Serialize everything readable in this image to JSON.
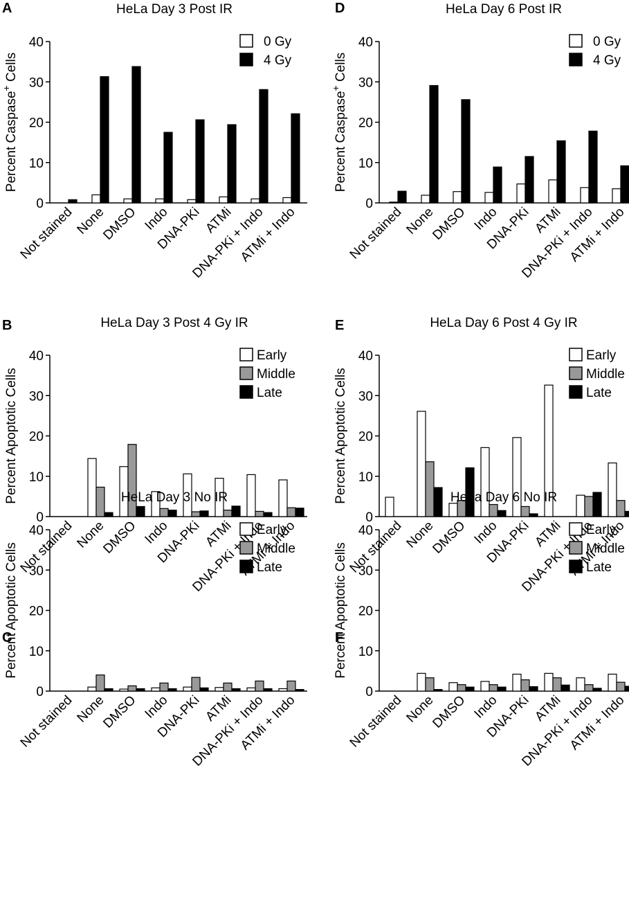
{
  "colors": {
    "white_bar": "#ffffff",
    "gray_bar": "#999999",
    "black_bar": "#000000",
    "stroke": "#000000"
  },
  "chart_data": [
    {
      "panel": "A",
      "type": "bar",
      "title": "HeLa Day 3 Post IR",
      "ylabel": "Percent Caspase+ Cells",
      "ylabel_main": "Percent Caspase",
      "ylabel_sup": "+",
      "ylabel_tail": " Cells",
      "ylim": [
        0,
        40
      ],
      "yticks": [
        "0",
        "10",
        "20",
        "30",
        "40"
      ],
      "categories": [
        "Not stained",
        "None",
        "DMSO",
        "Indo",
        "DNA-PKi",
        "ATMi",
        "DNA-PKi + Indo",
        "ATMi + Indo"
      ],
      "legend": "top-right",
      "series": [
        {
          "name": "0 Gy",
          "fill": "white",
          "values": [
            0,
            2.0,
            1.0,
            1.0,
            0.8,
            1.5,
            1.0,
            1.3
          ]
        },
        {
          "name": "4 Gy",
          "fill": "black",
          "values": [
            0.8,
            31.3,
            33.8,
            17.5,
            20.6,
            19.4,
            28.1,
            22.1
          ]
        }
      ]
    },
    {
      "panel": "D",
      "type": "bar",
      "title": "HeLa Day 6 Post IR",
      "ylabel": "Percent Caspase+ Cells",
      "ylabel_main": "Percent Caspase",
      "ylabel_sup": "+",
      "ylabel_tail": " Cells",
      "ylim": [
        0,
        40
      ],
      "yticks": [
        "0",
        "10",
        "20",
        "30",
        "40"
      ],
      "categories": [
        "Not stained",
        "None",
        "DMSO",
        "Indo",
        "DNA-PKi",
        "ATMi",
        "DNA-PKi + Indo",
        "ATMi + Indo"
      ],
      "legend": "top-right",
      "series": [
        {
          "name": "0 Gy",
          "fill": "white",
          "values": [
            0.2,
            1.9,
            2.8,
            2.6,
            4.7,
            5.7,
            3.8,
            3.5
          ]
        },
        {
          "name": "4 Gy",
          "fill": "black",
          "values": [
            2.9,
            29.1,
            25.6,
            8.9,
            11.5,
            15.4,
            17.8,
            9.2
          ]
        }
      ]
    },
    {
      "panel": "B",
      "type": "bar",
      "title": "HeLa Day 3 Post 4 Gy IR",
      "ylabel": "Percent Apoptotic Cells",
      "ylabel_main": "Percent Apoptotic Cells",
      "ylabel_sup": "",
      "ylabel_tail": "",
      "ylim": [
        0,
        40
      ],
      "yticks": [
        "0",
        "10",
        "20",
        "30",
        "40"
      ],
      "categories": [
        "Not stained",
        "None",
        "DMSO",
        "Indo",
        "DNA-PKi",
        "ATMi",
        "DNA-PKi + Indo",
        "ATMi + Indo"
      ],
      "legend": "top-right",
      "series": [
        {
          "name": "Early",
          "fill": "white",
          "values": [
            0,
            14.4,
            12.4,
            6.2,
            10.6,
            9.5,
            10.4,
            9.1
          ]
        },
        {
          "name": "Middle",
          "fill": "gray",
          "values": [
            0,
            7.3,
            17.9,
            2.0,
            1.2,
            1.6,
            1.3,
            2.2
          ]
        },
        {
          "name": "Late",
          "fill": "black",
          "values": [
            0,
            1.0,
            2.5,
            1.6,
            1.4,
            2.6,
            1.0,
            2.1
          ]
        }
      ]
    },
    {
      "panel": "E",
      "type": "bar",
      "title": "HeLa Day 6 Post 4 Gy IR",
      "ylabel": "Percent Apoptotic Cells",
      "ylabel_main": "Percent Apoptotic Cells",
      "ylabel_sup": "",
      "ylabel_tail": "",
      "ylim": [
        0,
        40
      ],
      "yticks": [
        "0",
        "10",
        "20",
        "30",
        "40"
      ],
      "categories": [
        "Not stained",
        "None",
        "DMSO",
        "Indo",
        "DNA-PKi",
        "ATMi",
        "DNA-PKi + Indo",
        "ATMi + Indo"
      ],
      "legend": "top-right",
      "series": [
        {
          "name": "Early",
          "fill": "white",
          "values": [
            4.8,
            26.1,
            3.3,
            17.1,
            19.6,
            32.6,
            5.3,
            13.3
          ]
        },
        {
          "name": "Middle",
          "fill": "gray",
          "values": [
            0,
            13.6,
            4.0,
            3.0,
            2.5,
            0,
            5.0,
            4.0
          ]
        },
        {
          "name": "Late",
          "fill": "black",
          "values": [
            0,
            7.2,
            12.1,
            1.5,
            0.7,
            0,
            6.0,
            1.3
          ]
        }
      ]
    },
    {
      "panel": "C",
      "type": "bar",
      "title": "HeLa Day 3 No IR",
      "ylabel": "Percent Apoptotic Cells",
      "ylabel_main": "Percent Apoptotic Cells",
      "ylabel_sup": "",
      "ylabel_tail": "",
      "ylim": [
        0,
        40
      ],
      "yticks": [
        "0",
        "10",
        "20",
        "30",
        "40"
      ],
      "categories": [
        "Not stained",
        "None",
        "DMSO",
        "Indo",
        "DNA-PKi",
        "ATMi",
        "DNA-PKi + Indo",
        "ATMi + Indo"
      ],
      "legend": "top-right",
      "series": [
        {
          "name": "Early",
          "fill": "white",
          "values": [
            0,
            1.0,
            0.5,
            0.8,
            1.0,
            0.9,
            0.8,
            0.6
          ]
        },
        {
          "name": "Middle",
          "fill": "gray",
          "values": [
            0,
            4.0,
            1.3,
            2.0,
            3.4,
            2.0,
            2.5,
            2.5
          ]
        },
        {
          "name": "Late",
          "fill": "black",
          "values": [
            0,
            0.6,
            0.6,
            0.6,
            0.8,
            0.6,
            0.6,
            0.4
          ]
        }
      ]
    },
    {
      "panel": "F",
      "type": "bar",
      "title": "HeLa Day 6 No IR",
      "ylabel": "Percent Apoptotic Cells",
      "ylabel_main": "Percent Apoptotic Cells",
      "ylabel_sup": "",
      "ylabel_tail": "",
      "ylim": [
        0,
        40
      ],
      "yticks": [
        "0",
        "10",
        "20",
        "30",
        "40"
      ],
      "categories": [
        "Not stained",
        "None",
        "DMSO",
        "Indo",
        "DNA-PKi",
        "ATMi",
        "DNA-PKi + Indo",
        "ATMi + Indo"
      ],
      "legend": "top-right",
      "series": [
        {
          "name": "Early",
          "fill": "white",
          "values": [
            0,
            4.4,
            2.1,
            2.4,
            4.2,
            4.4,
            3.3,
            4.2
          ]
        },
        {
          "name": "Middle",
          "fill": "gray",
          "values": [
            0,
            3.3,
            1.6,
            1.6,
            2.8,
            3.3,
            1.6,
            2.2
          ]
        },
        {
          "name": "Late",
          "fill": "black",
          "values": [
            0,
            0.4,
            1.0,
            1.0,
            1.1,
            1.5,
            0.7,
            1.2
          ]
        }
      ]
    }
  ]
}
